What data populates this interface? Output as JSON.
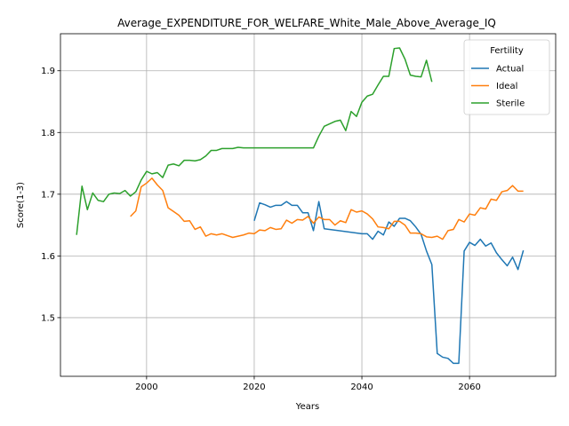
{
  "chart_data": {
    "type": "line",
    "title": "Average_EXPENDITURE_FOR_WELFARE_White_Male_Above_Average_IQ",
    "xlabel": "Years",
    "ylabel": "Score(1-3)",
    "xlim": [
      1984,
      2076
    ],
    "ylim": [
      1.405,
      1.96
    ],
    "xticks": [
      2000,
      2020,
      2040,
      2060
    ],
    "yticks": [
      1.5,
      1.6,
      1.7,
      1.8,
      1.9
    ],
    "grid": true,
    "legend": {
      "title": "Fertility",
      "placement": "top-right"
    },
    "series": [
      {
        "name": "Actual",
        "color": "#1f77b4",
        "x": [
          2020,
          2021,
          2022,
          2023,
          2024,
          2025,
          2026,
          2027,
          2028,
          2029,
          2030,
          2031,
          2032,
          2033,
          2040,
          2041,
          2042,
          2043,
          2044,
          2045,
          2046,
          2047,
          2048,
          2049,
          2050,
          2051,
          2052,
          2053,
          2054,
          2055,
          2056,
          2057,
          2058,
          2059,
          2060,
          2061,
          2062,
          2063,
          2064,
          2065,
          2066,
          2067,
          2068,
          2069,
          2070
        ],
        "y": [
          1.657,
          1.686,
          1.683,
          1.679,
          1.682,
          1.682,
          1.688,
          1.682,
          1.682,
          1.67,
          1.67,
          1.641,
          1.688,
          1.644,
          1.636,
          1.636,
          1.627,
          1.64,
          1.634,
          1.655,
          1.648,
          1.661,
          1.661,
          1.657,
          1.647,
          1.635,
          1.608,
          1.586,
          1.442,
          1.436,
          1.434,
          1.426,
          1.426,
          1.608,
          1.622,
          1.617,
          1.627,
          1.616,
          1.621,
          1.605,
          1.594,
          1.584,
          1.598,
          1.578,
          1.609
        ]
      },
      {
        "name": "Ideal",
        "color": "#ff7f0e",
        "x": [
          1997,
          1998,
          1999,
          2000,
          2001,
          2002,
          2003,
          2004,
          2005,
          2006,
          2007,
          2008,
          2009,
          2010,
          2011,
          2012,
          2013,
          2014,
          2015,
          2016,
          2017,
          2018,
          2019,
          2020,
          2021,
          2022,
          2023,
          2024,
          2025,
          2026,
          2027,
          2028,
          2029,
          2030,
          2031,
          2032,
          2033,
          2034,
          2035,
          2036,
          2037,
          2038,
          2039,
          2040,
          2041,
          2042,
          2043,
          2044,
          2045,
          2046,
          2047,
          2048,
          2049,
          2050,
          2051,
          2052,
          2053,
          2054,
          2055,
          2056,
          2057,
          2058,
          2059,
          2060,
          2061,
          2062,
          2063,
          2064,
          2065,
          2066,
          2067,
          2068,
          2069,
          2070
        ],
        "y": [
          1.664,
          1.673,
          1.712,
          1.718,
          1.726,
          1.715,
          1.706,
          1.678,
          1.672,
          1.666,
          1.656,
          1.657,
          1.643,
          1.647,
          1.632,
          1.636,
          1.634,
          1.636,
          1.633,
          1.63,
          1.632,
          1.634,
          1.637,
          1.636,
          1.642,
          1.641,
          1.646,
          1.643,
          1.644,
          1.658,
          1.653,
          1.659,
          1.658,
          1.664,
          1.653,
          1.663,
          1.659,
          1.659,
          1.65,
          1.657,
          1.654,
          1.675,
          1.671,
          1.673,
          1.668,
          1.66,
          1.647,
          1.646,
          1.644,
          1.656,
          1.656,
          1.65,
          1.637,
          1.637,
          1.636,
          1.631,
          1.63,
          1.632,
          1.627,
          1.641,
          1.643,
          1.659,
          1.655,
          1.668,
          1.666,
          1.678,
          1.676,
          1.692,
          1.69,
          1.704,
          1.706,
          1.714,
          1.705,
          1.705
        ]
      },
      {
        "name": "Sterile",
        "color": "#2ca02c",
        "x": [
          1987,
          1988,
          1989,
          1990,
          1991,
          1992,
          1993,
          1994,
          1995,
          1996,
          1997,
          1998,
          1999,
          2000,
          2001,
          2002,
          2003,
          2004,
          2005,
          2006,
          2007,
          2008,
          2009,
          2010,
          2011,
          2012,
          2013,
          2014,
          2015,
          2016,
          2017,
          2018,
          2019,
          2020,
          2031,
          2032,
          2033,
          2034,
          2035,
          2036,
          2037,
          2038,
          2039,
          2040,
          2041,
          2042,
          2043,
          2044,
          2045,
          2046,
          2047,
          2048,
          2049,
          2050,
          2051,
          2052,
          2053
        ],
        "y": [
          1.634,
          1.713,
          1.675,
          1.702,
          1.69,
          1.688,
          1.7,
          1.702,
          1.701,
          1.706,
          1.697,
          1.704,
          1.723,
          1.737,
          1.733,
          1.735,
          1.727,
          1.747,
          1.749,
          1.746,
          1.755,
          1.755,
          1.754,
          1.756,
          1.762,
          1.771,
          1.771,
          1.774,
          1.774,
          1.774,
          1.776,
          1.775,
          1.775,
          1.775,
          1.775,
          1.794,
          1.81,
          1.814,
          1.818,
          1.82,
          1.803,
          1.834,
          1.826,
          1.849,
          1.859,
          1.862,
          1.877,
          1.891,
          1.891,
          1.936,
          1.937,
          1.919,
          1.893,
          1.891,
          1.89,
          1.917,
          1.882
        ]
      }
    ]
  }
}
